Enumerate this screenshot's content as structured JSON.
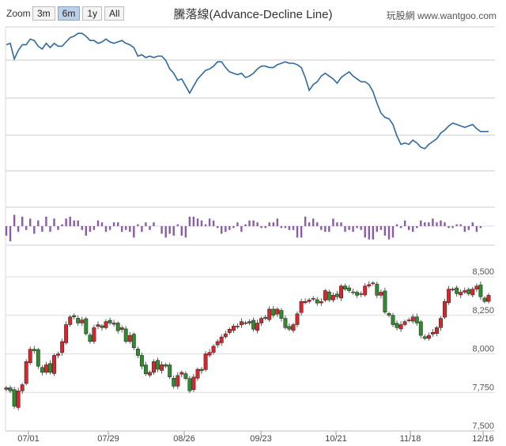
{
  "toolbar": {
    "zoom_label": "Zoom",
    "ranges": [
      {
        "label": "3m",
        "active": false
      },
      {
        "label": "6m",
        "active": true
      },
      {
        "label": "1y",
        "active": false
      },
      {
        "label": "All",
        "active": false
      }
    ]
  },
  "credit": "玩股網 www.wantgoo.com",
  "chart_data": {
    "type": "line",
    "title": "騰落線(Advance-Decline Line)",
    "x_tick_labels": [
      "07/01",
      "07/29",
      "08/26",
      "09/23",
      "10/21",
      "11/18",
      "12/16"
    ],
    "panels": [
      {
        "name": "",
        "type": "line",
        "color": "#2f6a9e",
        "values": [
          0.88,
          0.89,
          0.78,
          0.84,
          0.88,
          0.88,
          0.92,
          0.91,
          0.87,
          0.85,
          0.89,
          0.86,
          0.89,
          0.87,
          0.87,
          0.9,
          0.93,
          0.94,
          0.96,
          0.96,
          0.94,
          0.91,
          0.91,
          0.89,
          0.9,
          0.92,
          0.9,
          0.89,
          0.9,
          0.91,
          0.89,
          0.88,
          0.86,
          0.8,
          0.81,
          0.79,
          0.8,
          0.79,
          0.8,
          0.8,
          0.77,
          0.71,
          0.68,
          0.63,
          0.64,
          0.59,
          0.54,
          0.59,
          0.64,
          0.67,
          0.7,
          0.71,
          0.73,
          0.76,
          0.76,
          0.72,
          0.69,
          0.68,
          0.67,
          0.68,
          0.65,
          0.66,
          0.68,
          0.71,
          0.73,
          0.73,
          0.72,
          0.72,
          0.74,
          0.75,
          0.76,
          0.75,
          0.75,
          0.74,
          0.72,
          0.65,
          0.56,
          0.6,
          0.62,
          0.66,
          0.68,
          0.66,
          0.64,
          0.61,
          0.65,
          0.67,
          0.69,
          0.66,
          0.64,
          0.62,
          0.62,
          0.6,
          0.55,
          0.47,
          0.4,
          0.37,
          0.36,
          0.32,
          0.24,
          0.18,
          0.19,
          0.18,
          0.21,
          0.19,
          0.16,
          0.15,
          0.18,
          0.2,
          0.22,
          0.26,
          0.28,
          0.31,
          0.33,
          0.32,
          0.31,
          0.3,
          0.31,
          0.32,
          0.29,
          0.27,
          0.27,
          0.27
        ]
      },
      {
        "name": "",
        "type": "column",
        "color": "#8a5ca6",
        "values": [
          -0.5,
          -0.8,
          0.6,
          -0.3,
          0.5,
          -0.2,
          0.4,
          -0.4,
          0.3,
          -0.3,
          0.5,
          -0.3,
          0.4,
          -0.2,
          0.1,
          0.4,
          0.5,
          0.3,
          0.3,
          -0.2,
          -0.5,
          -0.3,
          -0.2,
          0.3,
          0.2,
          -0.3,
          -0.2,
          0.2,
          0.2,
          -0.3,
          -0.2,
          -0.3,
          -0.6,
          0.1,
          -0.3,
          0.2,
          -0.2,
          0.2,
          0,
          -0.4,
          -0.6,
          -0.4,
          -0.5,
          0.1,
          -0.5,
          -0.6,
          0.5,
          0.5,
          0.4,
          0.3,
          0.1,
          0.4,
          0.3,
          -0.1,
          -0.4,
          -0.3,
          -0.2,
          -0.1,
          0.2,
          -0.3,
          0.1,
          0.3,
          0.3,
          0.2,
          -0.1,
          -0.1,
          0.2,
          0.2,
          0.4,
          -0.1,
          -0.1,
          -0.2,
          -0.2,
          -0.6,
          -0.6,
          0.5,
          0.2,
          0.4,
          0.2,
          -0.2,
          -0.3,
          -0.3,
          0.4,
          0.2,
          0.2,
          -0.3,
          -0.2,
          -0.3,
          -0.1,
          -0.2,
          -0.6,
          -0.7,
          -0.7,
          -0.3,
          -0.2,
          -0.5,
          -0.7,
          -0.6,
          0.1,
          -0.1,
          0.3,
          -0.2,
          -0.3,
          -0.1,
          0.3,
          0.2,
          0.2,
          0.4,
          0.2,
          0.3,
          0.2,
          -0.1,
          -0.1,
          0.1,
          0.1,
          -0.3,
          -0.2,
          0.2,
          -0.3,
          -0.1
        ]
      },
      {
        "name": "",
        "type": "candlestick",
        "up_color": "#d8262c",
        "down_color": "#2e8b2e",
        "y_tick_labels": [
          "8,500",
          "8,250",
          "8,000",
          "7,750",
          "7,500"
        ],
        "ylim": [
          7500,
          8500
        ],
        "closes": [
          7780,
          7760,
          7660,
          7760,
          7800,
          7950,
          8030,
          8020,
          7920,
          7880,
          7930,
          7880,
          7990,
          8000,
          8080,
          8190,
          8240,
          8240,
          8200,
          8220,
          8130,
          8080,
          8170,
          8190,
          8170,
          8210,
          8200,
          8200,
          8150,
          8170,
          8080,
          8120,
          8040,
          7990,
          7920,
          7870,
          7880,
          7950,
          7900,
          7930,
          7920,
          7850,
          7790,
          7860,
          7880,
          7840,
          7760,
          7850,
          7900,
          7890,
          8000,
          8010,
          8050,
          8080,
          8110,
          8130,
          8160,
          8180,
          8180,
          8210,
          8200,
          8210,
          8160,
          8200,
          8230,
          8230,
          8290,
          8250,
          8290,
          8230,
          8170,
          8160,
          8190,
          8260,
          8340,
          8340,
          8350,
          8360,
          8330,
          8340,
          8410,
          8350,
          8380,
          8370,
          8440,
          8420,
          8410,
          8400,
          8380,
          8390,
          8440,
          8450,
          8460,
          8380,
          8400,
          8270,
          8250,
          8190,
          8170,
          8190,
          8210,
          8220,
          8240,
          8200,
          8120,
          8100,
          8120,
          8140,
          8170,
          8230,
          8340,
          8420,
          8420,
          8390,
          8400,
          8410,
          8390,
          8420,
          8440,
          8370,
          8340,
          8380
        ]
      }
    ]
  }
}
